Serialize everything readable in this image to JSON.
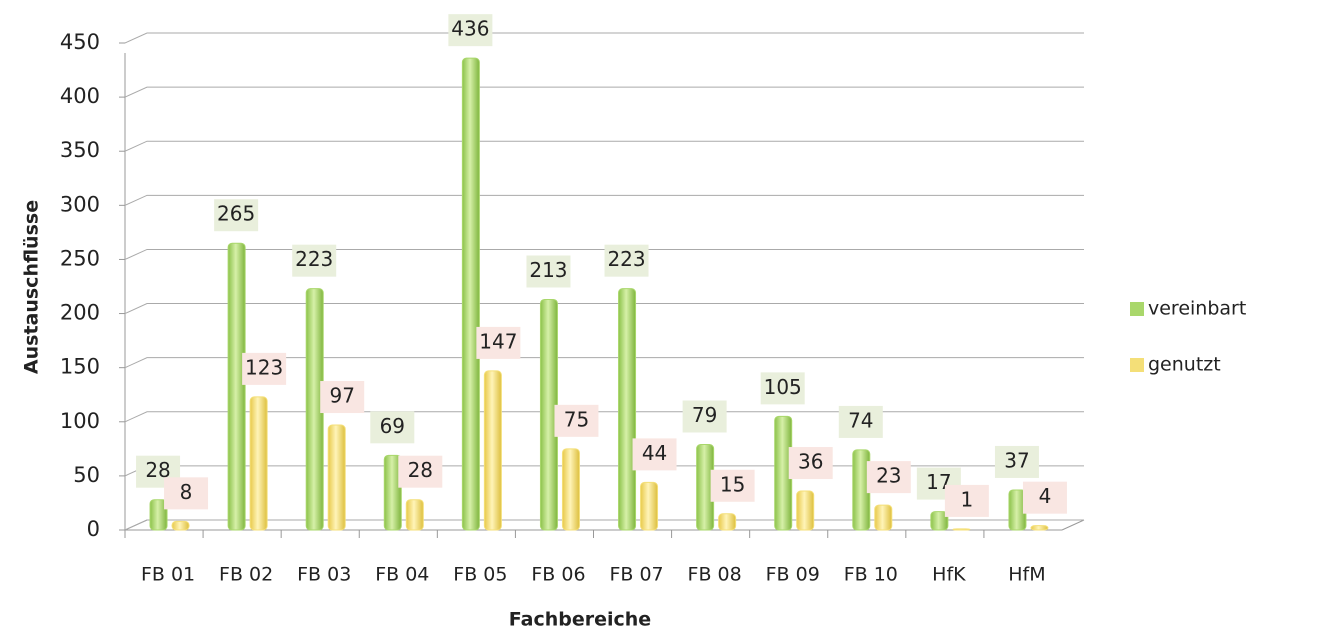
{
  "chart_data": {
    "type": "bar",
    "categories": [
      "FB 01",
      "FB 02",
      "FB 03",
      "FB 04",
      "FB 05",
      "FB 06",
      "FB 07",
      "FB 08",
      "FB 09",
      "FB 10",
      "HfK",
      "HfM"
    ],
    "series": [
      {
        "name": "vereinbart",
        "color": "#a9d76b",
        "values": [
          28,
          265,
          223,
          69,
          436,
          213,
          223,
          79,
          105,
          74,
          17,
          37
        ]
      },
      {
        "name": "genutzt",
        "color": "#f4df78",
        "values": [
          8,
          123,
          97,
          28,
          147,
          75,
          44,
          15,
          36,
          23,
          1,
          4
        ]
      }
    ],
    "xlabel": "Fachbereiche",
    "ylabel": "Austauschflüsse",
    "ylim": [
      0,
      450
    ],
    "yticks": [
      0,
      50,
      100,
      150,
      200,
      250,
      300,
      350,
      400,
      450
    ],
    "grid": true,
    "legend": "right"
  }
}
